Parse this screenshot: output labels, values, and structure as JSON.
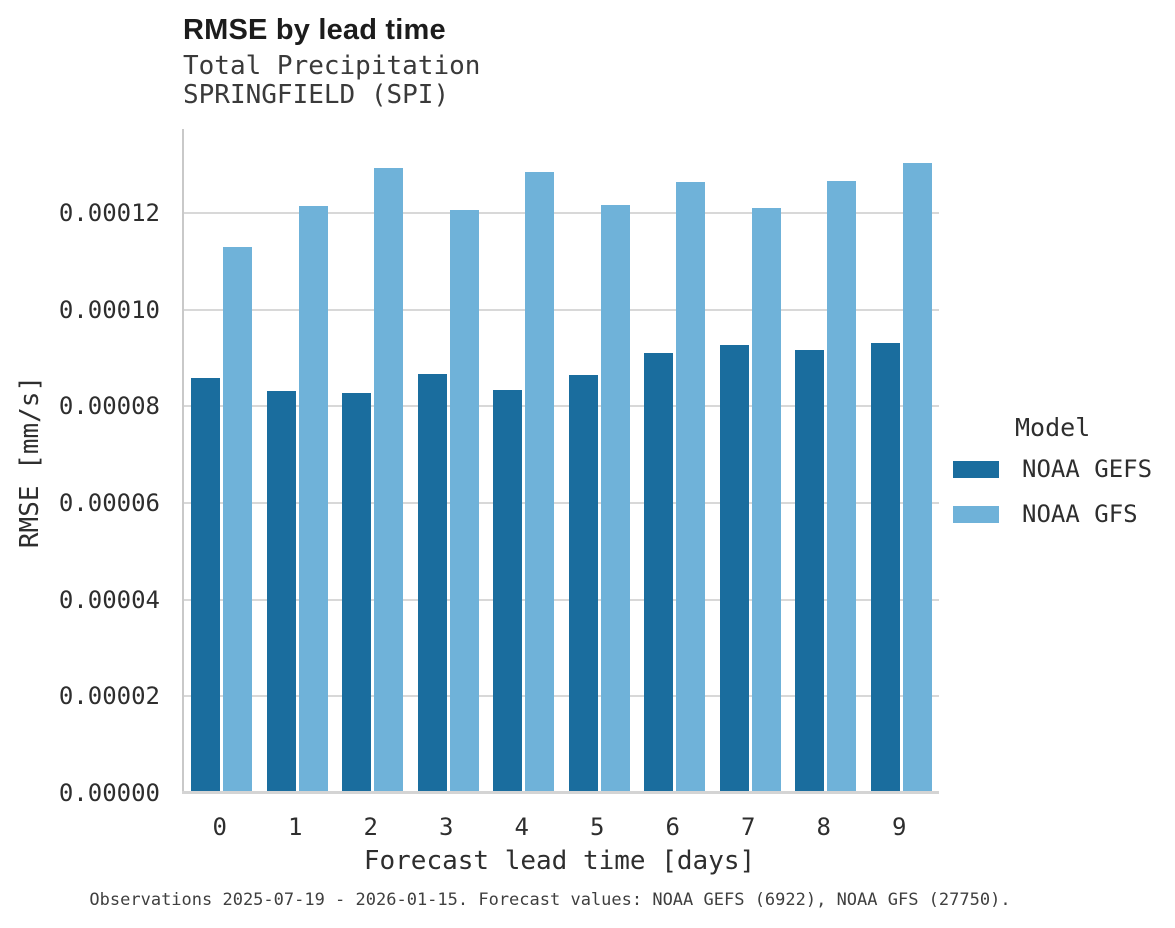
{
  "chart_data": {
    "type": "bar",
    "title": "RMSE by lead time",
    "subtitle_lines": [
      "Total Precipitation",
      "SPRINGFIELD (SPI)"
    ],
    "xlabel": "Forecast lead time [days]",
    "ylabel": "RMSE [mm/s]",
    "categories": [
      "0",
      "1",
      "2",
      "3",
      "4",
      "5",
      "6",
      "7",
      "8",
      "9"
    ],
    "series": [
      {
        "name": "NOAA GEFS",
        "color": "#1a6d9e",
        "values": [
          8.59e-05,
          8.32e-05,
          8.27e-05,
          8.67e-05,
          8.34e-05,
          8.65e-05,
          9.1e-05,
          9.27e-05,
          9.17e-05,
          9.31e-05
        ]
      },
      {
        "name": "NOAA GFS",
        "color": "#6fb2d9",
        "values": [
          0.000113,
          0.0001214,
          0.0001293,
          0.0001206,
          0.0001285,
          0.0001217,
          0.0001264,
          0.000121,
          0.0001266,
          0.0001303
        ]
      }
    ],
    "ylim": [
      0,
      0.0001374
    ],
    "yticks": [
      0,
      2e-05,
      4e-05,
      6e-05,
      8e-05,
      0.0001,
      0.00012
    ],
    "ytick_labels": [
      "0.00000",
      "0.00002",
      "0.00004",
      "0.00006",
      "0.00008",
      "0.00010",
      "0.00012"
    ],
    "grid": "horizontal",
    "legend": {
      "title": "Model",
      "position": "right",
      "entries": [
        "NOAA GEFS",
        "NOAA GFS"
      ]
    },
    "caption": "Observations 2025-07-19 - 2026-01-15. Forecast values: NOAA GEFS (6922), NOAA GFS (27750).",
    "colors": {
      "grid": "#d8d8d8",
      "axis_spine": "#c9c9c9",
      "baseline": "#d4d4d4",
      "text": "#2e2e2e",
      "title_text": "#1c1c1c",
      "caption_text": "#3f3f3f",
      "background": "#ffffff"
    }
  }
}
